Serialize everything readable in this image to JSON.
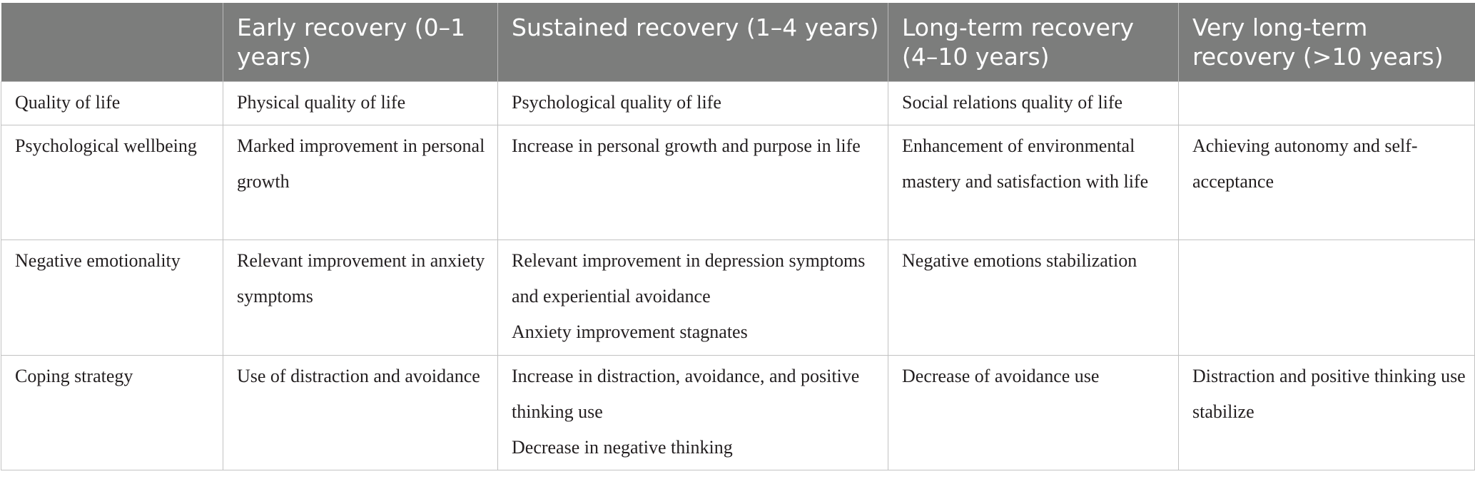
{
  "table": {
    "header": {
      "corner": "",
      "col1": "Early recovery (0–1 years)",
      "col2": "Sustained recovery (1–4 years)",
      "col3": "Long-term recovery (4–10 years)",
      "col4": "Very long-term recovery (>10 years)"
    },
    "rows": [
      {
        "label": "Quality of life",
        "early": "Physical quality of life",
        "sustained": [
          "Psychological quality of life"
        ],
        "long_term": "Social relations quality of life",
        "very_long_term": ""
      },
      {
        "label": "Psychological wellbeing",
        "early": "Marked improvement in personal growth",
        "sustained": [
          "Increase in personal growth and purpose in life"
        ],
        "long_term": "Enhancement of environmental mastery and satisfaction with life",
        "very_long_term": "Achieving autonomy and self-acceptance"
      },
      {
        "label": "Negative emotionality",
        "early": "Relevant improvement in anxiety symptoms",
        "sustained": [
          "Relevant improvement in depression symptoms and experiential avoidance",
          "Anxiety improvement stagnates"
        ],
        "long_term": "Negative emotions stabilization",
        "very_long_term": ""
      },
      {
        "label": "Coping strategy",
        "early": "Use of distraction and avoidance",
        "sustained": [
          "Increase in distraction, avoidance, and positive thinking use",
          "Decrease in negative thinking"
        ],
        "long_term": "Decrease of avoidance use",
        "very_long_term": "Distraction and positive thinking use stabilize"
      }
    ]
  }
}
